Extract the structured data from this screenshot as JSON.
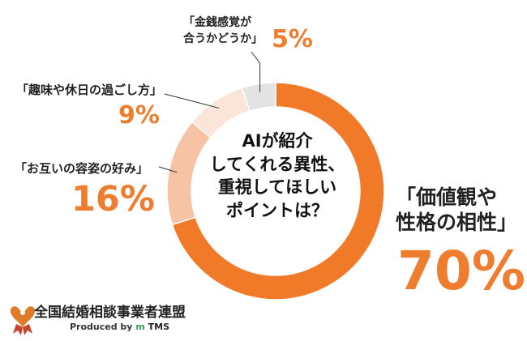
{
  "chart_data": {
    "type": "pie",
    "donut": true,
    "center_text": [
      "AIが紹介",
      "してくれる異性、",
      "重視してほしい",
      "ポイントは？"
    ],
    "slices": [
      {
        "label_lines": [
          "「価値観や",
          "性格の相性」"
        ],
        "value": 70,
        "value_text": "70%",
        "color": "#f07a28"
      },
      {
        "label_lines": [
          "「お互いの容姿の好み」"
        ],
        "value": 16,
        "value_text": "16%",
        "color": "#f6c3a4"
      },
      {
        "label_lines": [
          "「趣味や休日の過ごし方」"
        ],
        "value": 9,
        "value_text": "9%",
        "color": "#fbe5d8"
      },
      {
        "label_lines": [
          "「金銭感覚が",
          "合うかどうか」"
        ],
        "value": 5,
        "value_text": "5%",
        "color": "#e3e3e3"
      }
    ]
  },
  "footer": {
    "org_name": "全国結婚相談事業者連盟",
    "produced_by": "Produced by",
    "brand": "TMS",
    "brand_mark": "m",
    "logo_icon": "heart-ribbon-icon"
  }
}
